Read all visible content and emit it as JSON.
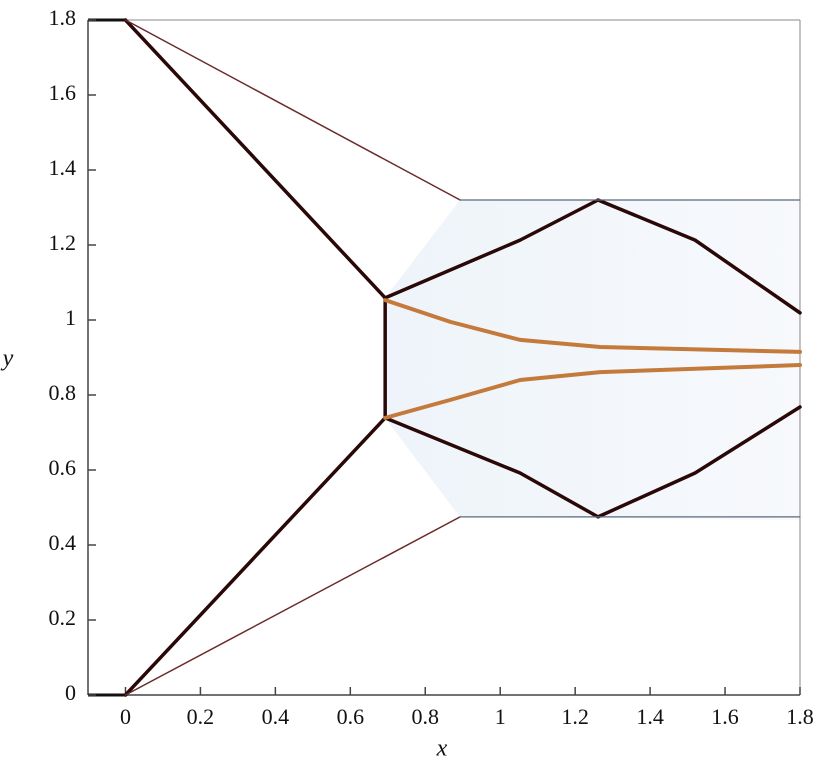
{
  "chart_data": {
    "type": "line",
    "x_label": "x",
    "y_label": "y",
    "xlim": [
      -0.1,
      1.8
    ],
    "ylim": [
      0,
      1.8
    ],
    "xticks": [
      0,
      0.2,
      0.4,
      0.6,
      0.8,
      1,
      1.2,
      1.4,
      1.6,
      1.8
    ],
    "yticks": [
      0,
      0.2,
      0.4,
      0.6,
      0.8,
      1,
      1.2,
      1.4,
      1.6,
      1.8
    ],
    "series": [
      {
        "color": "#2a0808",
        "x": [
          0,
          0.693,
          0.693,
          0
        ],
        "values": [
          1.8,
          1.059,
          0.739,
          0
        ]
      },
      {
        "color": "#6a2a2a",
        "x": [
          0,
          0.893
        ],
        "values": [
          1.8,
          1.32
        ]
      },
      {
        "color": "#6a2a2a",
        "x": [
          0,
          0.893
        ],
        "values": [
          0,
          0.475
        ]
      },
      {
        "color": "#2a0808",
        "x": [
          0.693,
          1.053,
          1.261,
          1.52,
          1.8
        ],
        "values": [
          1.059,
          1.213,
          1.32,
          1.213,
          1.019
        ]
      },
      {
        "color": "#2a0808",
        "x": [
          0.693,
          1.053,
          1.261,
          1.52,
          1.8
        ],
        "values": [
          0.739,
          0.592,
          0.475,
          0.592,
          0.768
        ]
      },
      {
        "color": "#c47a3a",
        "x": [
          0.693,
          0.867,
          1.053,
          1.267,
          1.8
        ],
        "values": [
          1.053,
          0.995,
          0.947,
          0.928,
          0.915
        ]
      },
      {
        "color": "#c47a3a",
        "x": [
          0.693,
          0.867,
          1.053,
          1.267,
          1.8
        ],
        "values": [
          0.739,
          0.787,
          0.84,
          0.861,
          0.88
        ]
      },
      {
        "color": "#5a6a7a",
        "x": [
          0.893,
          1.8
        ],
        "values": [
          1.32,
          1.32
        ]
      },
      {
        "color": "#5a6a7a",
        "x": [
          0.893,
          1.8
        ],
        "values": [
          0.475,
          0.475
        ]
      }
    ]
  }
}
